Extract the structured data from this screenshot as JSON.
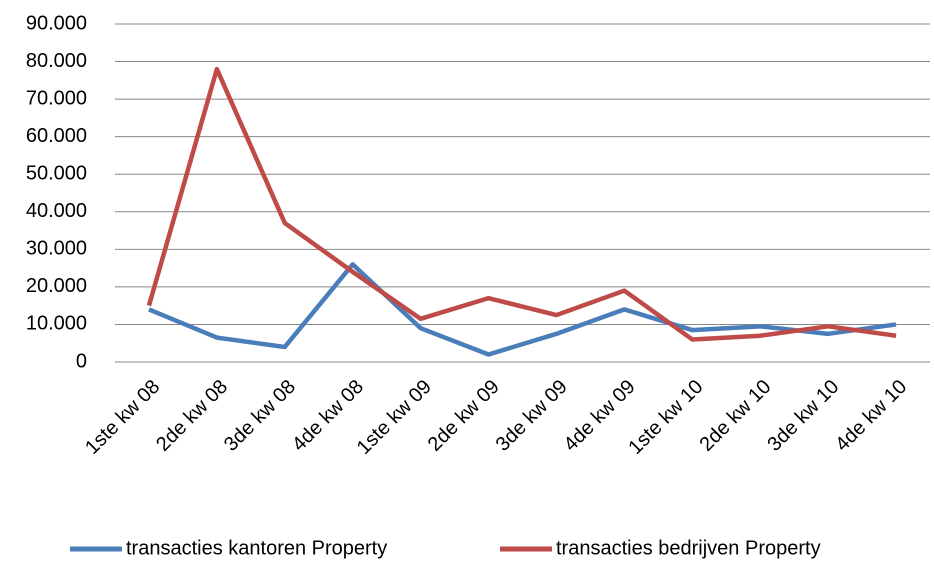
{
  "chart_data": {
    "type": "line",
    "categories": [
      "1ste kw 08",
      "2de kw 08",
      "3de kw 08",
      "4de kw 08",
      "1ste kw 09",
      "2de kw 09",
      "3de kw 09",
      "4de kw 09",
      "1ste kw 10",
      "2de kw 10",
      "3de kw 10",
      "4de kw 10"
    ],
    "series": [
      {
        "name": "transacties kantoren Property",
        "color": "#4a7ebb",
        "values": [
          14000,
          6500,
          4000,
          26000,
          9000,
          2000,
          7500,
          14000,
          8500,
          9500,
          7500,
          10000
        ]
      },
      {
        "name": "transacties bedrijven Property",
        "color": "#be4b48",
        "values": [
          15000,
          78000,
          37000,
          24000,
          11500,
          17000,
          12500,
          19000,
          6000,
          7000,
          9500,
          7000
        ]
      }
    ],
    "ylim": [
      0,
      90000
    ],
    "yticks": [
      0,
      {
        "value": 10000,
        "label": "10.000"
      },
      {
        "value": 20000,
        "label": "20.000"
      },
      {
        "value": 30000,
        "label": "30.000"
      },
      {
        "value": 40000,
        "label": "40.000"
      },
      {
        "value": 50000,
        "label": "50.000"
      },
      {
        "value": 60000,
        "label": "60.000"
      },
      {
        "value": 70000,
        "label": "70.000"
      },
      {
        "value": 80000,
        "label": "80.000"
      },
      {
        "value": 90000,
        "label": "90.000"
      }
    ],
    "grid": true,
    "legend": "bottom"
  }
}
